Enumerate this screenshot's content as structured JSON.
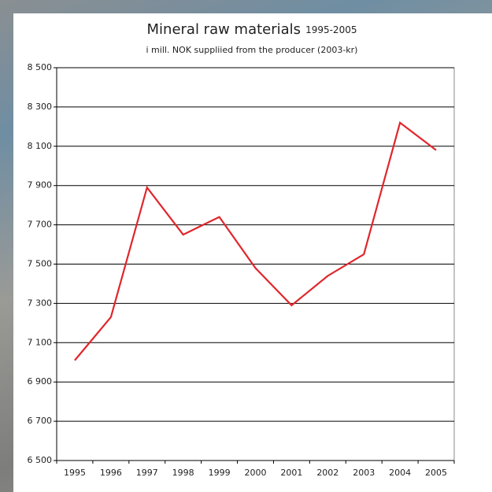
{
  "chart_data": {
    "type": "line",
    "title": "Mineral raw materials",
    "title_period": "1995-2005",
    "subtitle": "i mill. NOK suppliied from the producer (2003-kr)",
    "categories": [
      "1995",
      "1996",
      "1997",
      "1998",
      "1999",
      "2000",
      "2001",
      "2002",
      "2003",
      "2004",
      "2005"
    ],
    "values": [
      7010,
      7230,
      7890,
      7650,
      7740,
      7480,
      7290,
      7440,
      7550,
      8220,
      8080
    ],
    "color": "#e0262b",
    "ylim": [
      6500,
      8500
    ],
    "yticks": [
      {
        "value": 6500,
        "label": "6 500"
      },
      {
        "value": 6700,
        "label": "6 700"
      },
      {
        "value": 6900,
        "label": "6 900"
      },
      {
        "value": 7100,
        "label": "7 100"
      },
      {
        "value": 7300,
        "label": "7 300"
      },
      {
        "value": 7500,
        "label": "7 500"
      },
      {
        "value": 7700,
        "label": "7 700"
      },
      {
        "value": 7900,
        "label": "7 900"
      },
      {
        "value": 8100,
        "label": "8 100"
      },
      {
        "value": 8300,
        "label": "8 300"
      },
      {
        "value": 8500,
        "label": "8 500"
      }
    ],
    "grid": true
  }
}
